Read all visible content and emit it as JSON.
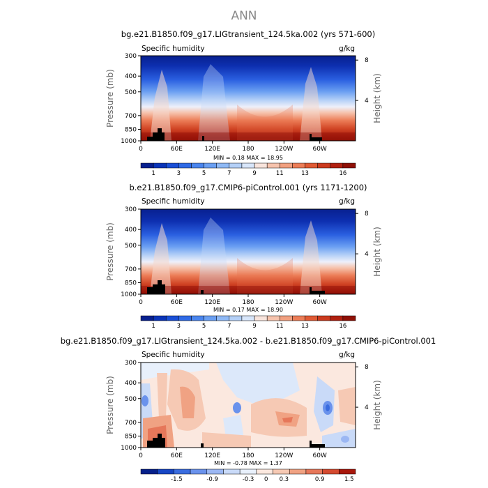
{
  "figure": {
    "title": "ANN"
  },
  "colors": {
    "humidity_scale": [
      "#08208f",
      "#0a34b8",
      "#1a4fd6",
      "#2f6ae6",
      "#4a85ee",
      "#6a9ff2",
      "#8fb9f5",
      "#b4d0f7",
      "#d8e6fa",
      "#f8e4dc",
      "#f6c3ad",
      "#f1a080",
      "#ec7d57",
      "#e05a34",
      "#cb3a1e",
      "#b02010",
      "#8f1006"
    ],
    "difference_scale": [
      "#06208a",
      "#1746c4",
      "#3a6cdf",
      "#6a92ec",
      "#9bb7f3",
      "#c9daf8",
      "#e8f0fb",
      "#fbe8df",
      "#f6c9b4",
      "#f0a283",
      "#e6775a",
      "#d44a30",
      "#a8180c"
    ],
    "land_mask": "#000000"
  },
  "chart_data": [
    {
      "type": "heatmap",
      "panel": "top",
      "title": "bg.e21.B1850.f09_g17.LIGtransient_124.5ka.002 (yrs 571-600)",
      "variable_label": "Specific humidity",
      "units_label": "g/kg",
      "ylabel": "Pressure (mb)",
      "ylabel_right": "Height (km)",
      "y_ticks": [
        "300",
        "400",
        "500",
        "700",
        "850",
        "1000"
      ],
      "y_tick_values": [
        300,
        400,
        500,
        700,
        850,
        1000
      ],
      "height_ticks": [
        "8",
        "4"
      ],
      "height_tick_values": [
        8,
        4
      ],
      "x_ticks": [
        "0",
        "60E",
        "120E",
        "180",
        "120W",
        "60W"
      ],
      "x_tick_values": [
        0,
        60,
        120,
        180,
        240,
        300
      ],
      "xlim": [
        0,
        360
      ],
      "ylim": [
        1000,
        300
      ],
      "stats_text": "MIN =    0.18   MAX =    18.95",
      "min": 0.18,
      "max": 18.95,
      "colorbar_labels": [
        "1",
        "3",
        "5",
        "7",
        "9",
        "11",
        "13",
        "16"
      ],
      "colorbar_levels": [
        0,
        1,
        2,
        3,
        4,
        5,
        6,
        7,
        8,
        9,
        10,
        11,
        12,
        13,
        14,
        16,
        17
      ]
    },
    {
      "type": "heatmap",
      "panel": "middle",
      "title": "b.e21.B1850.f09_g17.CMIP6-piControl.001 (yrs 1171-1200)",
      "variable_label": "Specific humidity",
      "units_label": "g/kg",
      "ylabel": "Pressure (mb)",
      "ylabel_right": "Height (km)",
      "y_ticks": [
        "300",
        "400",
        "500",
        "700",
        "850",
        "1000"
      ],
      "y_tick_values": [
        300,
        400,
        500,
        700,
        850,
        1000
      ],
      "height_ticks": [
        "8",
        "4"
      ],
      "height_tick_values": [
        8,
        4
      ],
      "x_ticks": [
        "0",
        "60E",
        "120E",
        "180",
        "120W",
        "60W"
      ],
      "x_tick_values": [
        0,
        60,
        120,
        180,
        240,
        300
      ],
      "xlim": [
        0,
        360
      ],
      "ylim": [
        1000,
        300
      ],
      "stats_text": "MIN =    0.17   MAX =    18.90",
      "min": 0.17,
      "max": 18.9,
      "colorbar_labels": [
        "1",
        "3",
        "5",
        "7",
        "9",
        "11",
        "13",
        "16"
      ],
      "colorbar_levels": [
        0,
        1,
        2,
        3,
        4,
        5,
        6,
        7,
        8,
        9,
        10,
        11,
        12,
        13,
        14,
        16,
        17
      ]
    },
    {
      "type": "heatmap",
      "panel": "bottom",
      "title": "bg.e21.B1850.f09_g17.LIGtransient_124.5ka.002 - b.e21.B1850.f09_g17.CMIP6-piControl.001",
      "variable_label": "Specific humidity",
      "units_label": "g/kg",
      "ylabel": "Pressure (mb)",
      "ylabel_right": "Height (km)",
      "y_ticks": [
        "300",
        "400",
        "500",
        "700",
        "850",
        "1000"
      ],
      "y_tick_values": [
        300,
        400,
        500,
        700,
        850,
        1000
      ],
      "height_ticks": [
        "8",
        "4"
      ],
      "height_tick_values": [
        8,
        4
      ],
      "x_ticks": [
        "0",
        "60E",
        "120E",
        "180",
        "120W",
        "60W"
      ],
      "x_tick_values": [
        0,
        60,
        120,
        180,
        240,
        300
      ],
      "xlim": [
        0,
        360
      ],
      "ylim": [
        1000,
        300
      ],
      "stats_text": "MIN =   -0.78   MAX =    1.37",
      "min": -0.78,
      "max": 1.37,
      "colorbar_labels": [
        "-1.5",
        "-0.9",
        "-0.3",
        "0",
        "0.3",
        "0.9",
        "1.5"
      ],
      "colorbar_levels": [
        -2.1,
        -1.5,
        -1.2,
        -0.9,
        -0.6,
        -0.3,
        -0.1,
        0,
        0.1,
        0.3,
        0.6,
        0.9,
        1.5
      ]
    }
  ]
}
